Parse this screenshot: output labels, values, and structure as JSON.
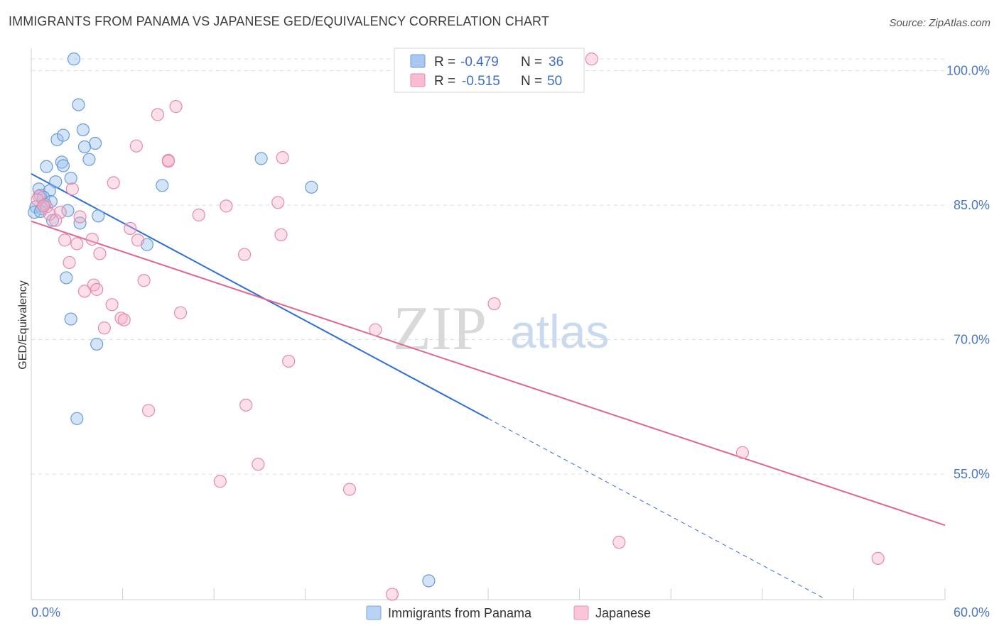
{
  "header": {
    "title": "IMMIGRANTS FROM PANAMA VS JAPANESE GED/EQUIVALENCY CORRELATION CHART",
    "source": "Source: ZipAtlas.com"
  },
  "watermark": {
    "zip": "ZIP",
    "atlas": "atlas"
  },
  "legend_top": {
    "rows": [
      {
        "r_label": "R =",
        "r_value": "-0.479",
        "n_label": "N =",
        "n_value": "36",
        "color": "#a9c7f0",
        "stroke": "#6d9ee0"
      },
      {
        "r_label": "R =",
        "r_value": "-0.515",
        "n_label": "N =",
        "n_value": "50",
        "color": "#f7bccf",
        "stroke": "#e88aaa"
      }
    ]
  },
  "legend_bottom": {
    "items": [
      {
        "label": "Immigrants from Panama",
        "color": "#b8d3f3",
        "stroke": "#7ca6dc"
      },
      {
        "label": "Japanese",
        "color": "#f9c6d5",
        "stroke": "#e792ae"
      }
    ]
  },
  "colors": {
    "blue_point_fill": "rgba(160,195,238,0.45)",
    "blue_point_stroke": "#6a9bd8",
    "blue_line": "#2f6fd6",
    "pink_point_fill": "rgba(246,176,200,0.40)",
    "pink_point_stroke": "#e68aab",
    "pink_line": "#e0668f",
    "grid": "#dcdcdc",
    "tick_label": "#4a78c2"
  },
  "chart_data": {
    "type": "scatter",
    "title": "IMMIGRANTS FROM PANAMA VS JAPANESE GED/EQUIVALENCY CORRELATION CHART",
    "xlabel": "",
    "ylabel": "GED/Equivalency",
    "x_tick_labels": [
      "0.0%",
      "60.0%"
    ],
    "y_tick_labels": [
      "100.0%",
      "85.0%",
      "70.0%",
      "55.0%"
    ],
    "y_ticks": [
      100.0,
      85.0,
      70.0,
      55.0
    ],
    "xlim": [
      0.0,
      60.0
    ],
    "ylim": [
      41.0,
      102.5
    ],
    "grid": true,
    "legend_position": "top-center",
    "series": [
      {
        "name": "Immigrants from Panama",
        "r": -0.479,
        "n": 36,
        "points": [
          [
            2.8,
            101.3
          ],
          [
            3.1,
            96.2
          ],
          [
            3.4,
            93.4
          ],
          [
            1.7,
            92.3
          ],
          [
            2.1,
            92.8
          ],
          [
            4.2,
            91.9
          ],
          [
            3.5,
            91.5
          ],
          [
            3.8,
            90.1
          ],
          [
            2.0,
            89.8
          ],
          [
            2.1,
            89.4
          ],
          [
            1.0,
            89.3
          ],
          [
            15.1,
            90.2
          ],
          [
            2.6,
            88.0
          ],
          [
            1.6,
            87.6
          ],
          [
            8.6,
            87.2
          ],
          [
            18.4,
            87.0
          ],
          [
            0.5,
            86.8
          ],
          [
            1.2,
            86.6
          ],
          [
            0.6,
            86.1
          ],
          [
            0.8,
            85.9
          ],
          [
            1.3,
            85.4
          ],
          [
            0.9,
            85.1
          ],
          [
            0.3,
            84.8
          ],
          [
            0.7,
            84.6
          ],
          [
            0.2,
            84.2
          ],
          [
            0.6,
            84.3
          ],
          [
            2.4,
            84.4
          ],
          [
            4.4,
            83.8
          ],
          [
            1.4,
            83.3
          ],
          [
            3.2,
            83.0
          ],
          [
            7.6,
            80.6
          ],
          [
            2.3,
            76.9
          ],
          [
            2.6,
            72.3
          ],
          [
            4.3,
            69.5
          ],
          [
            3.0,
            61.2
          ],
          [
            26.1,
            43.1
          ]
        ]
      },
      {
        "name": "Japanese",
        "r": -0.515,
        "n": 50,
        "points": [
          [
            36.8,
            101.3
          ],
          [
            9.5,
            96.0
          ],
          [
            8.3,
            95.1
          ],
          [
            6.9,
            91.6
          ],
          [
            9.0,
            90.0
          ],
          [
            9.0,
            89.9
          ],
          [
            16.5,
            90.3
          ],
          [
            5.4,
            87.5
          ],
          [
            2.7,
            86.8
          ],
          [
            16.2,
            85.3
          ],
          [
            0.5,
            86.0
          ],
          [
            0.4,
            85.6
          ],
          [
            12.8,
            84.9
          ],
          [
            1.0,
            84.8
          ],
          [
            1.9,
            84.2
          ],
          [
            11.0,
            83.9
          ],
          [
            3.2,
            83.7
          ],
          [
            1.2,
            84.0
          ],
          [
            1.6,
            83.3
          ],
          [
            6.5,
            82.4
          ],
          [
            16.4,
            81.7
          ],
          [
            4.0,
            81.2
          ],
          [
            2.2,
            81.1
          ],
          [
            7.0,
            81.1
          ],
          [
            3.0,
            80.7
          ],
          [
            14.0,
            79.5
          ],
          [
            4.5,
            79.6
          ],
          [
            2.5,
            78.6
          ],
          [
            7.4,
            76.6
          ],
          [
            4.1,
            76.1
          ],
          [
            3.5,
            75.4
          ],
          [
            4.3,
            75.6
          ],
          [
            5.3,
            73.9
          ],
          [
            30.4,
            74.0
          ],
          [
            9.8,
            73.0
          ],
          [
            5.9,
            72.4
          ],
          [
            6.1,
            72.2
          ],
          [
            4.8,
            71.3
          ],
          [
            22.6,
            71.1
          ],
          [
            16.9,
            67.6
          ],
          [
            7.7,
            62.1
          ],
          [
            14.1,
            62.7
          ],
          [
            14.9,
            56.1
          ],
          [
            12.4,
            54.2
          ],
          [
            20.9,
            53.3
          ],
          [
            46.7,
            57.4
          ],
          [
            38.6,
            47.4
          ],
          [
            55.6,
            45.6
          ],
          [
            23.7,
            41.6
          ],
          [
            0.8,
            84.9
          ]
        ]
      }
    ],
    "trend_lines": [
      {
        "series": "Immigrants from Panama",
        "x0": 0.0,
        "y0": 88.5,
        "x1": 30.0,
        "y1": 61.2,
        "dashed_to_x": 52.0,
        "dashed_to_y": 41.2
      },
      {
        "series": "Japanese",
        "x0": 0.0,
        "y0": 83.2,
        "x1": 60.0,
        "y1": 49.3
      }
    ]
  }
}
